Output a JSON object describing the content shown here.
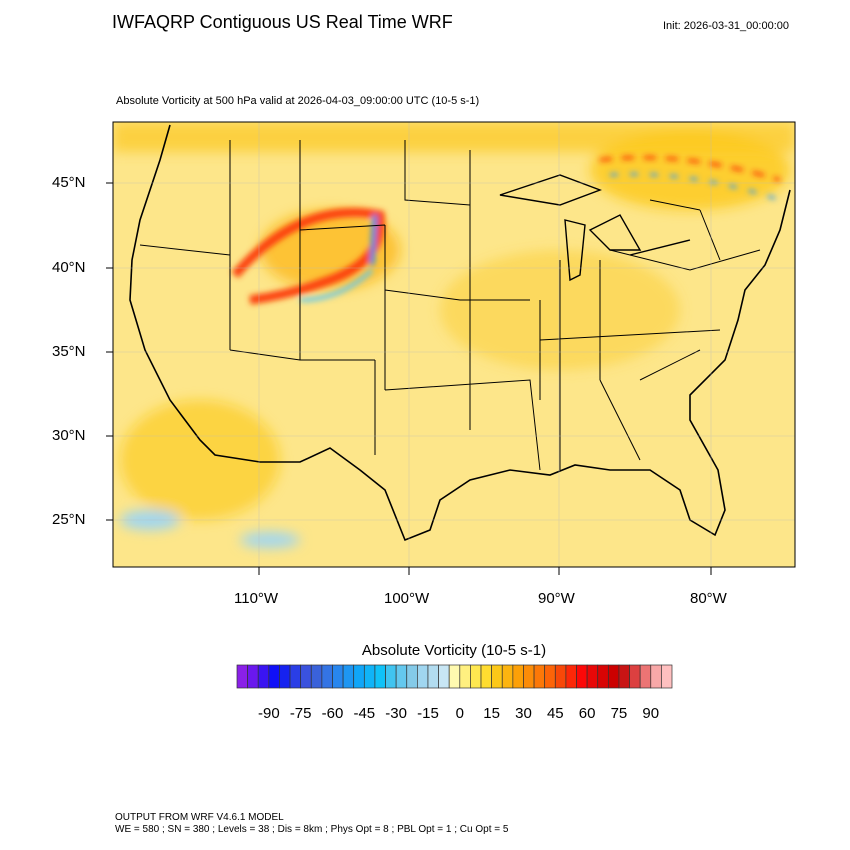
{
  "header": {
    "title": "IWFAQRP Contiguous US Real Time WRF",
    "init": "Init: 2026-03-31_00:00:00",
    "subtitle": "Absolute Vorticity at 500 hPa valid at 2026-04-03_09:00:00 UTC   (10-5 s-1)"
  },
  "chart_data": {
    "type": "heatmap",
    "title": "Absolute Vorticity at 500 hPa valid at 2026-04-03_09:00:00 UTC",
    "units": "10-5 s-1",
    "lat_ticks": [
      "45°N",
      "40°N",
      "35°N",
      "30°N",
      "25°N"
    ],
    "lon_ticks": [
      "110°W",
      "100°W",
      "90°W",
      "80°W"
    ],
    "region": "Contiguous US",
    "colorbar": {
      "title": "Absolute Vorticity  (10-5 s-1)",
      "range": [
        -100,
        100
      ],
      "interval": 5,
      "labels": [
        "-90",
        "-75",
        "-60",
        "-45",
        "-30",
        "-15",
        "0",
        "15",
        "30",
        "45",
        "60",
        "75",
        "90"
      ],
      "colors": [
        "#8a20e8",
        "#6a18ee",
        "#3a14f2",
        "#1010f8",
        "#1622f0",
        "#2a3ee6",
        "#3a52de",
        "#3a62da",
        "#3474e4",
        "#2886ee",
        "#1e96f2",
        "#10a6f8",
        "#10b4f8",
        "#10c2f8",
        "#40c4f0",
        "#64c8ee",
        "#84cae8",
        "#a0d6f0",
        "#b2dcf0",
        "#c8e6f4",
        "#fffab0",
        "#fff080",
        "#ffe850",
        "#ffdc30",
        "#fcc818",
        "#fcb410",
        "#fca008",
        "#fc8c08",
        "#fc7808",
        "#fc6408",
        "#f84808",
        "#fc2808",
        "#fc0808",
        "#e80808",
        "#d80404",
        "#cc0000",
        "#c81414",
        "#dc4040",
        "#ec7474",
        "#f8a8a8",
        "#ffc0c0"
      ],
      "above_color": "#ffc0c0"
    }
  },
  "footer": {
    "line1": "OUTPUT FROM WRF V4.6.1 MODEL",
    "line2": "WE = 580 ; SN = 380 ; Levels = 38 ; Dis = 8km ; Phys Opt = 8 ; PBL Opt = 1 ; Cu Opt = 5"
  }
}
